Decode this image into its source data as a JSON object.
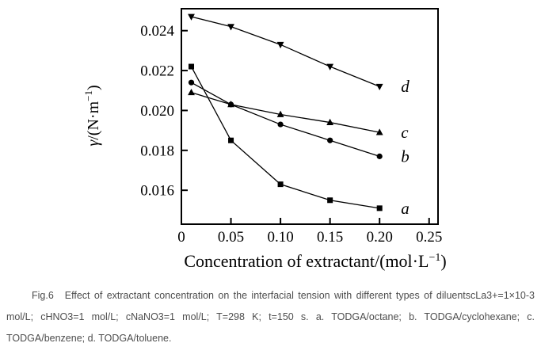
{
  "figure": {
    "caption": {
      "fig_label": "Fig.6",
      "text": "Effect of extractant concentration on the interfacial tension with different types of diluentscLa3+=1×10-3 mol/L; cHNO3=1 mol/L; cNaNO3=1 mol/L; T=298 K; t=150 s. a. TODGA/octane; b. TODGA/cyclohexane; c. TODGA/benzene; d. TODGA/toluene."
    }
  },
  "chart_data": {
    "type": "line",
    "title": "",
    "xlabel": "Concentration of extractant/(mol·L⁻¹)",
    "ylabel": "γ/(N·m⁻¹)",
    "xlabel_parts": [
      {
        "t": "Concentration of extractant/(mol·L"
      },
      {
        "t": "−1",
        "sup": true
      },
      {
        "t": ")"
      }
    ],
    "ylabel_parts": [
      {
        "t": "γ",
        "italic": true
      },
      {
        "t": "/(N·m"
      },
      {
        "t": "−1",
        "sup": true
      },
      {
        "t": ")"
      }
    ],
    "x": [
      0.01,
      0.05,
      0.1,
      0.15,
      0.2
    ],
    "series": [
      {
        "name": "a",
        "label": "a",
        "diluent": "TODGA/octane",
        "marker": "square",
        "values": [
          0.0222,
          0.0185,
          0.0163,
          0.0155,
          0.0151
        ]
      },
      {
        "name": "b",
        "label": "b",
        "diluent": "TODGA/cyclohexane",
        "marker": "circle",
        "values": [
          0.0214,
          0.0203,
          0.0193,
          0.0185,
          0.0177
        ]
      },
      {
        "name": "c",
        "label": "c",
        "diluent": "TODGA/benzene",
        "marker": "triangle-up",
        "values": [
          0.0209,
          0.0203,
          0.0198,
          0.0194,
          0.0189
        ]
      },
      {
        "name": "d",
        "label": "d",
        "diluent": "TODGA/toluene",
        "marker": "triangle-down",
        "values": [
          0.0247,
          0.0242,
          0.0233,
          0.0222,
          0.0212
        ]
      }
    ],
    "xticks": {
      "values": [
        0,
        0.05,
        0.1,
        0.15,
        0.2,
        0.25
      ],
      "labels": [
        "0",
        "0.05",
        "0.10",
        "0.15",
        "0.20",
        "0.25"
      ]
    },
    "yticks": {
      "values": [
        0.016,
        0.018,
        0.02,
        0.022,
        0.024
      ],
      "labels": [
        "0.016",
        "0.018",
        "0.020",
        "0.022",
        "0.024"
      ]
    },
    "xlim": [
      0,
      0.259
    ],
    "ylim": [
      0.0143,
      0.0251
    ],
    "grid": false,
    "legend_position": "right-of-last-point",
    "line_color": "#000000",
    "background_color": "#ffffff"
  }
}
